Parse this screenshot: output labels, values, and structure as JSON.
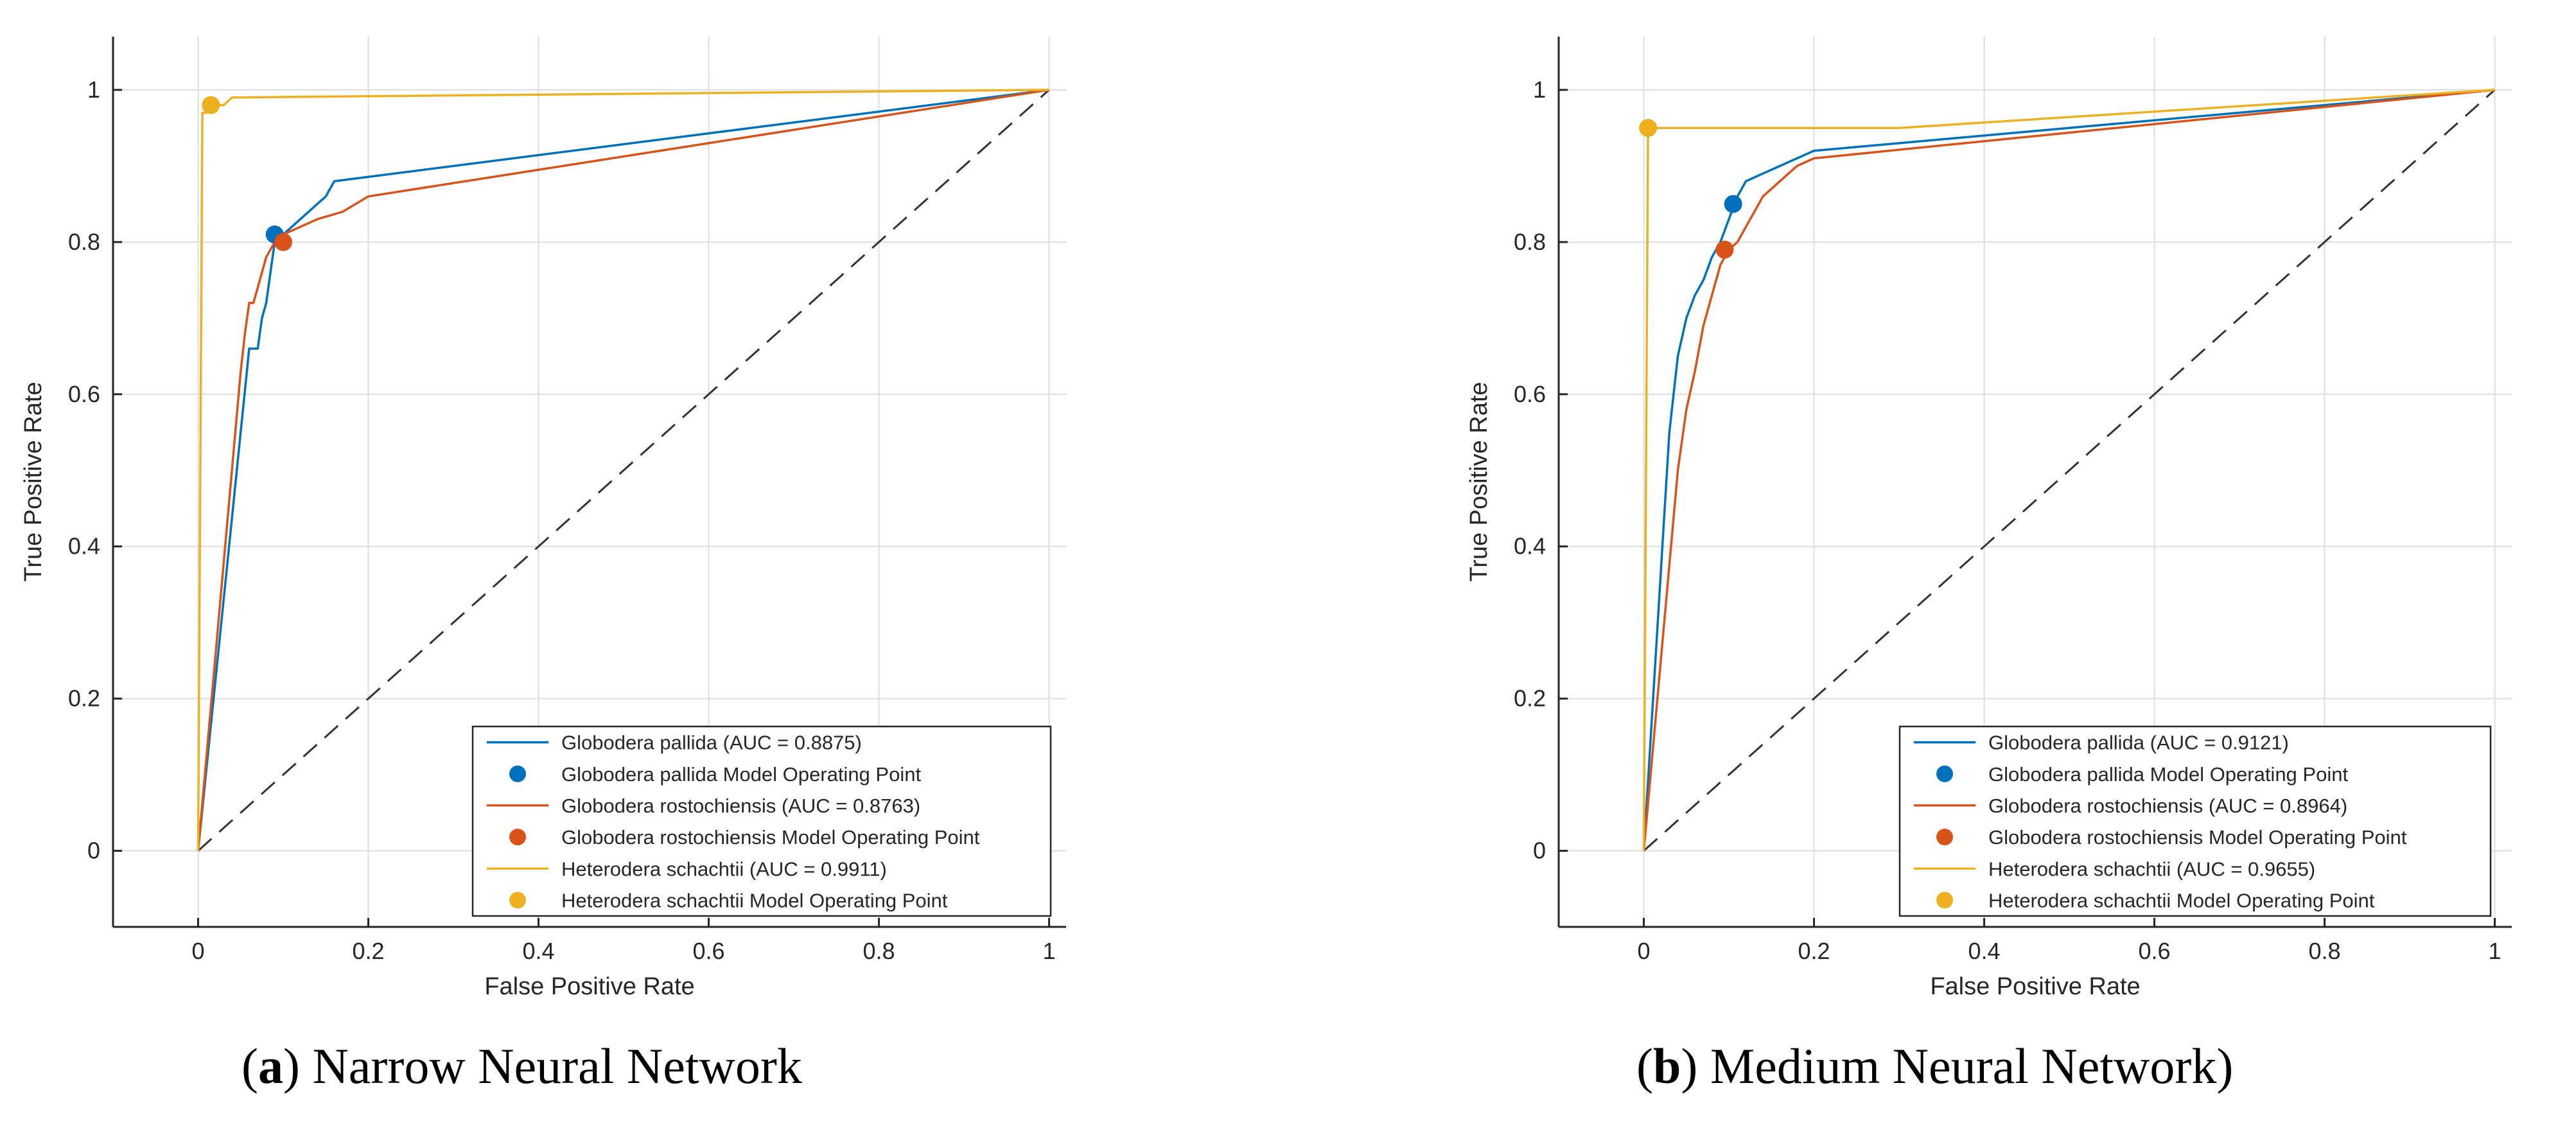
{
  "chart_data": [
    {
      "type": "line",
      "panel": "a",
      "caption_letter": "a",
      "caption_text": "Narrow Neural Network",
      "xlabel": "False Positive Rate",
      "ylabel": "True Positive Rate",
      "xlim": [
        -0.1,
        1.02
      ],
      "ylim": [
        -0.1,
        1.07
      ],
      "xticks": [
        0,
        0.2,
        0.4,
        0.6,
        0.8,
        1
      ],
      "yticks": [
        0,
        0.2,
        0.4,
        0.6,
        0.8,
        1
      ],
      "xtick_labels": [
        "0",
        "0.2",
        "0.4",
        "0.6",
        "0.8",
        "1"
      ],
      "ytick_labels": [
        "0",
        "0.2",
        "0.4",
        "0.6",
        "0.8",
        "1"
      ],
      "grid": true,
      "legend_position": "bottom-right",
      "series": [
        {
          "name": "Globodera pallida (AUC = 0.8875)",
          "color": "#0072BD",
          "x": [
            0,
            0.06,
            0.07,
            0.075,
            0.08,
            0.085,
            0.09,
            0.1,
            0.11,
            0.12,
            0.13,
            0.14,
            0.15,
            0.16,
            1
          ],
          "y": [
            0,
            0.66,
            0.66,
            0.7,
            0.72,
            0.76,
            0.8,
            0.81,
            0.82,
            0.83,
            0.84,
            0.85,
            0.86,
            0.88,
            1
          ]
        },
        {
          "name": "Globodera pallida Model Operating Point",
          "color": "#0072BD",
          "marker": true,
          "x": [
            0.09
          ],
          "y": [
            0.81
          ]
        },
        {
          "name": "Globodera rostochiensis (AUC = 0.8763)",
          "color": "#D95319",
          "x": [
            0,
            0.05,
            0.055,
            0.06,
            0.065,
            0.07,
            0.075,
            0.08,
            0.085,
            0.09,
            0.1,
            0.12,
            0.14,
            0.17,
            0.2,
            1
          ],
          "y": [
            0,
            0.63,
            0.68,
            0.72,
            0.72,
            0.74,
            0.76,
            0.78,
            0.79,
            0.8,
            0.81,
            0.82,
            0.83,
            0.84,
            0.86,
            1
          ]
        },
        {
          "name": "Globodera rostochiensis Model Operating Point",
          "color": "#D95319",
          "marker": true,
          "x": [
            0.1
          ],
          "y": [
            0.8
          ]
        },
        {
          "name": "Heterodera schachtii (AUC = 0.9911)",
          "color": "#EDB120",
          "x": [
            0,
            0.005,
            0.01,
            0.015,
            0.03,
            0.04,
            1
          ],
          "y": [
            0,
            0.97,
            0.97,
            0.98,
            0.98,
            0.99,
            1
          ]
        },
        {
          "name": "Heterodera schachtii Model Operating Point",
          "color": "#EDB120",
          "marker": true,
          "x": [
            0.015
          ],
          "y": [
            0.98
          ]
        }
      ]
    },
    {
      "type": "line",
      "panel": "b",
      "caption_letter": "b",
      "caption_text": "Medium Neural Network)",
      "xlabel": "False Positive Rate",
      "ylabel": "True Positive Rate",
      "xlim": [
        -0.1,
        1.02
      ],
      "ylim": [
        -0.1,
        1.07
      ],
      "xticks": [
        0,
        0.2,
        0.4,
        0.6,
        0.8,
        1
      ],
      "yticks": [
        0,
        0.2,
        0.4,
        0.6,
        0.8,
        1
      ],
      "xtick_labels": [
        "0",
        "0.2",
        "0.4",
        "0.6",
        "0.8",
        "1"
      ],
      "ytick_labels": [
        "0",
        "0.2",
        "0.4",
        "0.6",
        "0.8",
        "1"
      ],
      "grid": true,
      "legend_position": "bottom-right",
      "series": [
        {
          "name": "Globodera pallida (AUC = 0.9121)",
          "color": "#0072BD",
          "x": [
            0,
            0.03,
            0.04,
            0.05,
            0.06,
            0.07,
            0.08,
            0.09,
            0.1,
            0.11,
            0.12,
            0.14,
            0.16,
            0.18,
            0.2,
            1
          ],
          "y": [
            0,
            0.55,
            0.65,
            0.7,
            0.73,
            0.75,
            0.78,
            0.8,
            0.83,
            0.86,
            0.88,
            0.89,
            0.9,
            0.91,
            0.92,
            1
          ]
        },
        {
          "name": "Globodera pallida Model Operating Point",
          "color": "#0072BD",
          "marker": true,
          "x": [
            0.105
          ],
          "y": [
            0.85
          ]
        },
        {
          "name": "Globodera rostochiensis (AUC = 0.8964)",
          "color": "#D95319",
          "x": [
            0,
            0.04,
            0.05,
            0.06,
            0.07,
            0.08,
            0.09,
            0.1,
            0.11,
            0.12,
            0.13,
            0.14,
            0.15,
            0.16,
            0.18,
            0.2,
            1
          ],
          "y": [
            0,
            0.5,
            0.58,
            0.63,
            0.69,
            0.73,
            0.77,
            0.79,
            0.8,
            0.82,
            0.84,
            0.86,
            0.87,
            0.88,
            0.9,
            0.91,
            1
          ]
        },
        {
          "name": "Globodera rostochiensis Model Operating Point",
          "color": "#D95319",
          "marker": true,
          "x": [
            0.095
          ],
          "y": [
            0.79
          ]
        },
        {
          "name": "Heterodera schachtii (AUC = 0.9655)",
          "color": "#EDB120",
          "x": [
            0,
            0.005,
            0.3,
            1
          ],
          "y": [
            0,
            0.95,
            0.95,
            1
          ]
        },
        {
          "name": "Heterodera schachtii Model Operating Point",
          "color": "#EDB120",
          "marker": true,
          "x": [
            0.005
          ],
          "y": [
            0.95
          ]
        }
      ]
    }
  ]
}
